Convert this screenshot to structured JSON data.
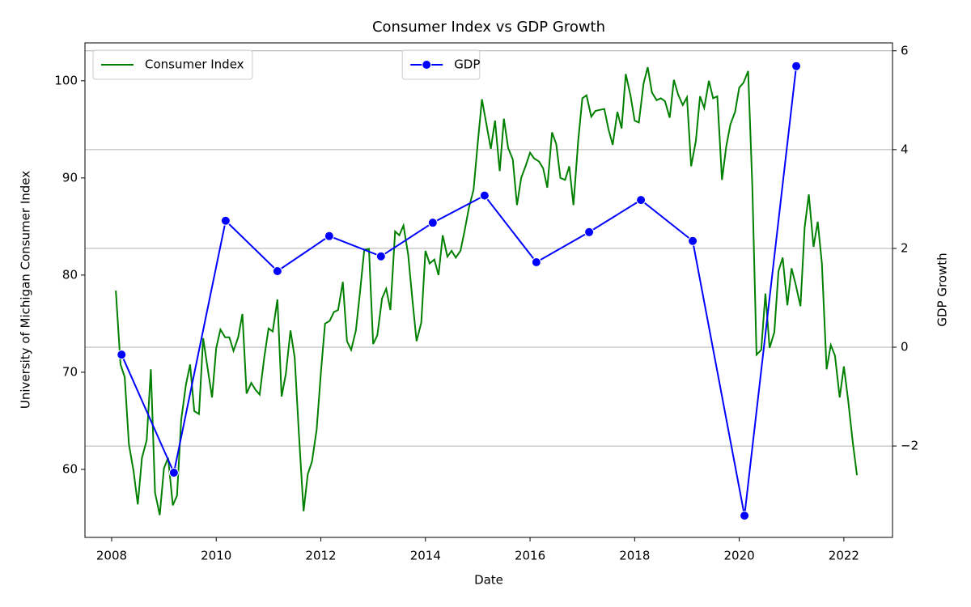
{
  "chart_data": {
    "type": "line",
    "title": "Consumer Index vs GDP Growth",
    "x_label": "Date",
    "y_label": "University of Michigan Consumer Index",
    "y2_label": "GDP Growth",
    "xlim": [
      2007.49,
      2022.93
    ],
    "xticks": [
      2008,
      2010,
      2012,
      2014,
      2016,
      2018,
      2020,
      2022
    ],
    "ylim": [
      53,
      103.9
    ],
    "yticks": [
      60,
      70,
      80,
      90,
      100
    ],
    "y2lim": [
      -3.85,
      6.16
    ],
    "y2ticks": [
      {
        "value": -2,
        "label": "−2"
      },
      0,
      2,
      4,
      6
    ],
    "y2grid": true,
    "series": [
      {
        "name": "Consumer Index",
        "color": "#008000",
        "legend_loc": "upper left",
        "x": [
          2008.08,
          2008.17,
          2008.25,
          2008.33,
          2008.42,
          2008.5,
          2008.58,
          2008.67,
          2008.75,
          2008.83,
          2008.92,
          2009.0,
          2009.08,
          2009.17,
          2009.25,
          2009.33,
          2009.42,
          2009.5,
          2009.58,
          2009.67,
          2009.75,
          2009.83,
          2009.92,
          2010.0,
          2010.08,
          2010.17,
          2010.25,
          2010.33,
          2010.42,
          2010.5,
          2010.58,
          2010.67,
          2010.75,
          2010.83,
          2010.92,
          2011.0,
          2011.08,
          2011.17,
          2011.25,
          2011.33,
          2011.42,
          2011.5,
          2011.58,
          2011.67,
          2011.75,
          2011.83,
          2011.92,
          2012.0,
          2012.08,
          2012.17,
          2012.25,
          2012.33,
          2012.42,
          2012.5,
          2012.58,
          2012.67,
          2012.75,
          2012.83,
          2012.92,
          2013.0,
          2013.08,
          2013.17,
          2013.25,
          2013.33,
          2013.42,
          2013.5,
          2013.58,
          2013.67,
          2013.75,
          2013.83,
          2013.92,
          2014.0,
          2014.08,
          2014.17,
          2014.25,
          2014.33,
          2014.42,
          2014.5,
          2014.58,
          2014.67,
          2014.75,
          2014.83,
          2014.92,
          2015.0,
          2015.08,
          2015.17,
          2015.25,
          2015.33,
          2015.42,
          2015.5,
          2015.58,
          2015.67,
          2015.75,
          2015.83,
          2015.92,
          2016.0,
          2016.08,
          2016.17,
          2016.25,
          2016.33,
          2016.42,
          2016.5,
          2016.58,
          2016.67,
          2016.75,
          2016.83,
          2016.92,
          2017.0,
          2017.08,
          2017.17,
          2017.25,
          2017.33,
          2017.42,
          2017.5,
          2017.58,
          2017.67,
          2017.75,
          2017.83,
          2017.92,
          2018.0,
          2018.08,
          2018.17,
          2018.25,
          2018.33,
          2018.42,
          2018.5,
          2018.58,
          2018.67,
          2018.75,
          2018.83,
          2018.92,
          2019.0,
          2019.08,
          2019.17,
          2019.25,
          2019.33,
          2019.42,
          2019.5,
          2019.58,
          2019.67,
          2019.75,
          2019.83,
          2019.92,
          2020.0,
          2020.08,
          2020.17,
          2020.25,
          2020.33,
          2020.42,
          2020.5,
          2020.58,
          2020.67,
          2020.75,
          2020.83,
          2020.92,
          2021.0,
          2021.08,
          2021.17,
          2021.25,
          2021.33,
          2021.42,
          2021.5,
          2021.58,
          2021.67,
          2021.75,
          2021.83,
          2021.92,
          2022.0,
          2022.08,
          2022.17,
          2022.25
        ],
        "values": [
          78.4,
          70.8,
          69.5,
          62.6,
          59.8,
          56.4,
          61.2,
          63.0,
          70.3,
          57.6,
          55.3,
          60.1,
          61.2,
          56.3,
          57.3,
          65.1,
          68.7,
          70.8,
          66.0,
          65.7,
          73.5,
          70.6,
          67.4,
          72.5,
          74.4,
          73.6,
          73.6,
          72.2,
          73.6,
          76.0,
          67.8,
          68.9,
          68.2,
          67.7,
          71.6,
          74.5,
          74.2,
          77.5,
          67.5,
          69.8,
          74.3,
          71.5,
          63.7,
          55.7,
          59.5,
          60.8,
          64.1,
          69.9,
          75.0,
          75.3,
          76.2,
          76.4,
          79.3,
          73.2,
          72.3,
          74.3,
          78.3,
          82.6,
          82.7,
          72.9,
          73.8,
          77.6,
          78.6,
          76.4,
          84.5,
          84.1,
          85.1,
          82.1,
          77.5,
          73.2,
          75.1,
          82.5,
          81.2,
          81.6,
          80.0,
          84.1,
          81.9,
          82.5,
          81.8,
          82.5,
          84.6,
          86.9,
          88.8,
          93.6,
          98.1,
          95.4,
          93.0,
          95.9,
          90.7,
          96.1,
          93.1,
          91.9,
          87.2,
          90.0,
          91.3,
          92.6,
          92.0,
          91.7,
          91.0,
          89.0,
          94.7,
          93.5,
          90.0,
          89.8,
          91.2,
          87.2,
          93.8,
          98.2,
          98.5,
          96.3,
          96.9,
          97.0,
          97.1,
          95.0,
          93.4,
          96.8,
          95.1,
          100.7,
          98.5,
          95.9,
          95.7,
          99.7,
          101.4,
          98.8,
          98.0,
          98.2,
          97.9,
          96.2,
          100.1,
          98.6,
          97.5,
          98.3,
          91.2,
          93.8,
          98.4,
          97.2,
          100.0,
          98.2,
          98.4,
          89.8,
          93.2,
          95.5,
          96.8,
          99.3,
          99.8,
          101.0,
          89.1,
          71.8,
          72.3,
          78.1,
          72.5,
          74.1,
          80.4,
          81.8,
          76.9,
          80.7,
          79.0,
          76.8,
          84.9,
          88.3,
          82.9,
          85.5,
          81.2,
          70.3,
          72.8,
          71.7,
          67.4,
          70.6,
          67.2,
          62.8,
          59.4
        ]
      },
      {
        "name": "GDP",
        "color": "#0000ff",
        "axis": "y2",
        "marker": "circle",
        "legend_loc": "upper center",
        "x": [
          2008.19,
          2009.19,
          2010.18,
          2011.17,
          2012.16,
          2013.15,
          2014.14,
          2015.13,
          2016.12,
          2017.13,
          2018.12,
          2019.11,
          2020.1,
          2021.09
        ],
        "values": [
          -0.15,
          -2.54,
          2.56,
          1.54,
          2.25,
          1.84,
          2.52,
          3.07,
          1.72,
          2.33,
          2.98,
          2.15,
          -3.41,
          5.69
        ]
      }
    ]
  }
}
